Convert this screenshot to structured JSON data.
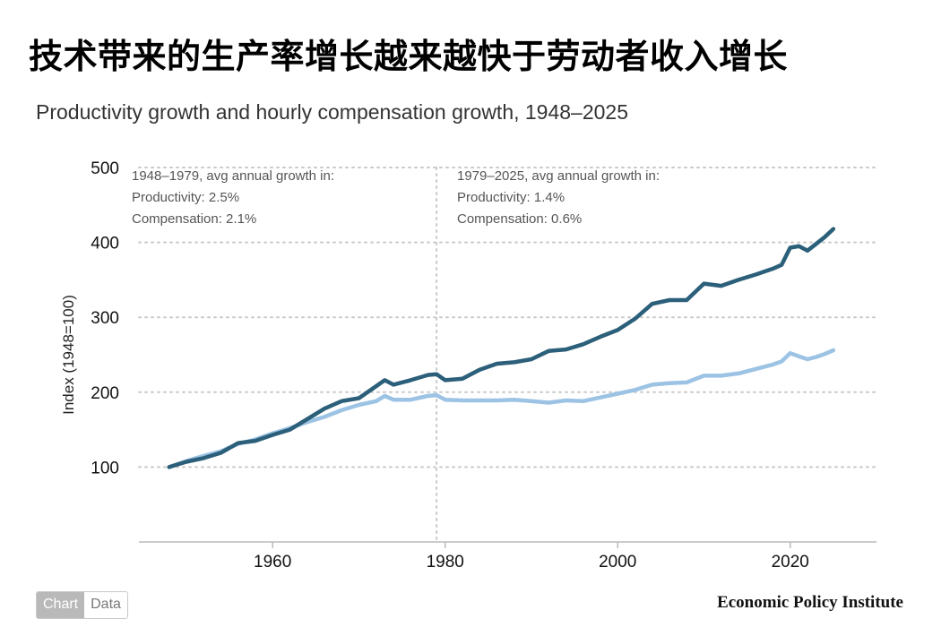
{
  "page": {
    "title": "技术带来的生产率增长越来越快于劳动者收入增长"
  },
  "colors": {
    "productivity": "#2b5f7a",
    "compensation": "#9cc3e4",
    "grid": "#c9c9c9",
    "axis": "#bbbbbb"
  },
  "chart_data": {
    "type": "line",
    "title": "Productivity growth and hourly compensation growth, 1948–2025",
    "xlabel": "",
    "ylabel": "Index (1948=100)",
    "xlim": [
      1944.5,
      2030
    ],
    "ylim": [
      0,
      500
    ],
    "xticks": [
      1960,
      1980,
      2000,
      2020
    ],
    "yticks": [
      100,
      200,
      300,
      400,
      500
    ],
    "divider_year": 1979,
    "annotations": [
      {
        "lines": [
          "1948–1979, avg annual growth in:",
          "Productivity: 2.5%",
          "Compensation: 2.1%"
        ]
      },
      {
        "lines": [
          "1979–2025, avg annual growth in:",
          "Productivity: 1.4%",
          "Compensation: 0.6%"
        ]
      }
    ],
    "series": [
      {
        "name": "Productivity",
        "x": [
          1948,
          1950,
          1952,
          1954,
          1956,
          1958,
          1960,
          1962,
          1964,
          1966,
          1968,
          1970,
          1972,
          1973,
          1974,
          1976,
          1978,
          1979,
          1980,
          1982,
          1984,
          1986,
          1988,
          1990,
          1992,
          1994,
          1996,
          1998,
          2000,
          2002,
          2004,
          2006,
          2008,
          2010,
          2012,
          2014,
          2016,
          2018,
          2019,
          2020,
          2021,
          2022,
          2023,
          2024,
          2025
        ],
        "values": [
          100,
          107,
          112,
          119,
          132,
          135,
          143,
          150,
          164,
          178,
          188,
          192,
          208,
          216,
          210,
          216,
          223,
          224,
          216,
          218,
          230,
          238,
          240,
          244,
          255,
          257,
          264,
          274,
          283,
          298,
          318,
          323,
          323,
          345,
          342,
          350,
          357,
          365,
          370,
          393,
          395,
          389,
          398,
          407,
          418
        ]
      },
      {
        "name": "Compensation",
        "x": [
          1948,
          1950,
          1952,
          1954,
          1956,
          1958,
          1960,
          1962,
          1964,
          1966,
          1968,
          1970,
          1972,
          1973,
          1974,
          1976,
          1978,
          1979,
          1980,
          1982,
          1984,
          1986,
          1988,
          1990,
          1992,
          1994,
          1996,
          1998,
          2000,
          2002,
          2004,
          2006,
          2008,
          2010,
          2012,
          2014,
          2016,
          2018,
          2019,
          2020,
          2021,
          2022,
          2023,
          2024,
          2025
        ],
        "values": [
          100,
          108,
          115,
          121,
          131,
          137,
          145,
          152,
          160,
          167,
          176,
          183,
          188,
          195,
          190,
          190,
          195,
          196,
          190,
          189,
          189,
          189,
          190,
          188,
          186,
          189,
          188,
          193,
          198,
          203,
          210,
          212,
          213,
          222,
          222,
          225,
          231,
          237,
          241,
          252,
          248,
          244,
          247,
          251,
          256
        ]
      }
    ]
  },
  "tabs": {
    "chart": "Chart",
    "data": "Data"
  },
  "source": "Economic Policy Institute"
}
